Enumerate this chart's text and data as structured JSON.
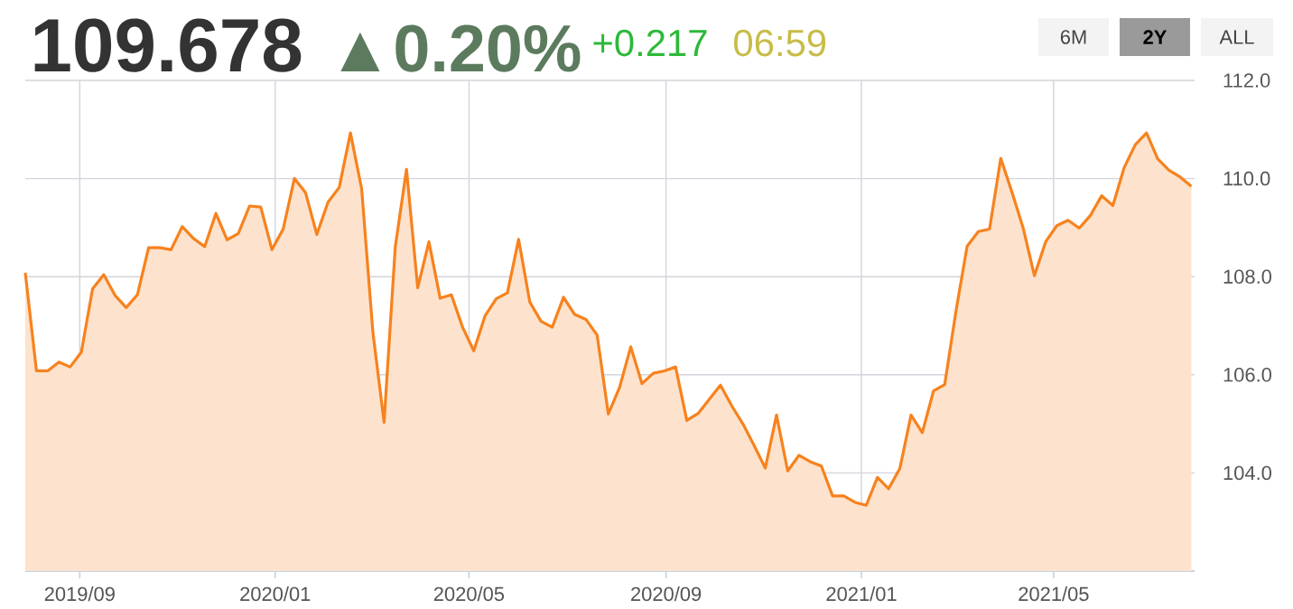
{
  "chart_data": {
    "type": "area",
    "title": "109.678",
    "annotations": [
      "▲0.20%",
      "+0.217",
      "06:59",
      "6M",
      "2Y",
      "ALL"
    ],
    "x": [
      "2019-07-29",
      "2019-08-05",
      "2019-08-12",
      "2019-08-19",
      "2019-08-26",
      "2019-09-02",
      "2019-09-09",
      "2019-09-16",
      "2019-09-23",
      "2019-09-30",
      "2019-10-07",
      "2019-10-14",
      "2019-10-21",
      "2019-10-28",
      "2019-11-04",
      "2019-11-11",
      "2019-11-18",
      "2019-11-25",
      "2019-12-02",
      "2019-12-09",
      "2019-12-16",
      "2019-12-23",
      "2019-12-30",
      "2020-01-06",
      "2020-01-13",
      "2020-01-20",
      "2020-01-27",
      "2020-02-03",
      "2020-02-10",
      "2020-02-17",
      "2020-02-24",
      "2020-03-02",
      "2020-03-09",
      "2020-03-16",
      "2020-03-23",
      "2020-03-30",
      "2020-04-06",
      "2020-04-13",
      "2020-04-20",
      "2020-04-27",
      "2020-05-04",
      "2020-05-11",
      "2020-05-18",
      "2020-05-25",
      "2020-06-01",
      "2020-06-08",
      "2020-06-15",
      "2020-06-22",
      "2020-06-29",
      "2020-07-06",
      "2020-07-13",
      "2020-07-20",
      "2020-07-27",
      "2020-08-03",
      "2020-08-10",
      "2020-08-17",
      "2020-08-24",
      "2020-08-31",
      "2020-09-07",
      "2020-09-14",
      "2020-09-21",
      "2020-09-28",
      "2020-10-05",
      "2020-10-12",
      "2020-10-19",
      "2020-10-26",
      "2020-11-02",
      "2020-11-09",
      "2020-11-16",
      "2020-11-23",
      "2020-11-30",
      "2020-12-07",
      "2020-12-14",
      "2020-12-21",
      "2020-12-28",
      "2021-01-04",
      "2021-01-11",
      "2021-01-18",
      "2021-01-25",
      "2021-02-01",
      "2021-02-08",
      "2021-02-15",
      "2021-02-22",
      "2021-03-01",
      "2021-03-08",
      "2021-03-15",
      "2021-03-22",
      "2021-03-29",
      "2021-04-05",
      "2021-04-12",
      "2021-04-19",
      "2021-04-26",
      "2021-05-03",
      "2021-05-10",
      "2021-05-17",
      "2021-05-24",
      "2021-05-31",
      "2021-06-07",
      "2021-06-14",
      "2021-06-21",
      "2021-06-28",
      "2021-07-05",
      "2021-07-12",
      "2021-07-19",
      "2021-07-26"
    ],
    "series": [
      {
        "color": "#f7821e",
        "values": [
          108.08,
          106.08,
          106.08,
          106.26,
          106.16,
          106.46,
          107.75,
          108.04,
          107.62,
          107.37,
          107.63,
          108.59,
          108.59,
          108.55,
          109.02,
          108.78,
          108.61,
          109.29,
          108.75,
          108.88,
          109.44,
          109.42,
          108.55,
          108.97,
          110.0,
          109.71,
          108.86,
          109.52,
          109.82,
          110.93,
          109.79,
          106.87,
          105.03,
          108.61,
          110.19,
          107.77,
          108.71,
          107.56,
          107.63,
          106.97,
          106.49,
          107.2,
          107.55,
          107.67,
          108.76,
          107.48,
          107.09,
          106.97,
          107.58,
          107.23,
          107.13,
          106.81,
          105.2,
          105.74,
          106.57,
          105.82,
          106.03,
          106.08,
          106.16,
          105.07,
          105.21,
          105.5,
          105.79,
          105.37,
          105.0,
          104.56,
          104.1,
          105.18,
          104.04,
          104.36,
          104.23,
          104.14,
          103.53,
          103.53,
          103.4,
          103.34,
          103.91,
          103.68,
          104.09,
          105.18,
          104.82,
          105.67,
          105.8,
          107.29,
          108.62,
          108.92,
          108.97,
          110.41,
          109.72,
          108.99,
          108.02,
          108.71,
          109.04,
          109.15,
          108.99,
          109.25,
          109.65,
          109.45,
          110.22,
          110.69,
          110.93,
          110.4,
          110.17,
          110.03,
          109.84
        ]
      }
    ],
    "xlim": [
      "2019-07-29",
      "2021-07-28"
    ],
    "xticks": [
      {
        "value": "2019-09-01",
        "label": "2019/09"
      },
      {
        "value": "2020-01-01",
        "label": "2020/01"
      },
      {
        "value": "2020-05-01",
        "label": "2020/05"
      },
      {
        "value": "2020-09-01",
        "label": "2020/09"
      },
      {
        "value": "2021-01-01",
        "label": "2021/01"
      },
      {
        "value": "2021-05-01",
        "label": "2021/05"
      }
    ],
    "ylim": [
      102,
      112
    ],
    "yticks": [
      {
        "value": 104,
        "label": "104.0"
      },
      {
        "value": 106,
        "label": "106.0"
      },
      {
        "value": 108,
        "label": "108.0"
      },
      {
        "value": 110,
        "label": "110.0"
      },
      {
        "value": 112,
        "label": "112.0"
      }
    ],
    "grid": true,
    "marker": "none",
    "line_style": "solid"
  }
}
